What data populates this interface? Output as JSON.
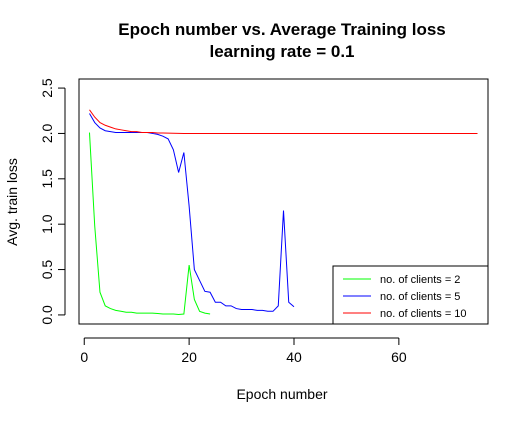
{
  "chart_data": {
    "type": "line",
    "title": "Epoch number vs. Average Training loss",
    "subtitle": "learning rate = 0.1",
    "xlabel": "Epoch number",
    "ylabel": "Avg. train loss",
    "xlim": [
      -1,
      77
    ],
    "ylim": [
      -0.1,
      2.6
    ],
    "x_ticks": [
      0,
      20,
      40,
      60
    ],
    "x_tick_labels": [
      "0",
      "20",
      "40",
      "60"
    ],
    "y_ticks": [
      0.0,
      0.5,
      1.0,
      1.5,
      2.0,
      2.5
    ],
    "y_tick_labels": [
      "0.0",
      "0.5",
      "1.0",
      "1.5",
      "2.0",
      "2.5"
    ],
    "grid": false,
    "legend_position": "bottom-right",
    "series": [
      {
        "name": "no. of clients = 2",
        "color": "#00ff00",
        "x": [
          1,
          2,
          3,
          4,
          5,
          6,
          7,
          8,
          9,
          10,
          11,
          12,
          13,
          14,
          15,
          16,
          17,
          18,
          19,
          20,
          21,
          22,
          23,
          24
        ],
        "y": [
          2.01,
          0.98,
          0.25,
          0.1,
          0.07,
          0.05,
          0.04,
          0.03,
          0.03,
          0.02,
          0.02,
          0.02,
          0.02,
          0.015,
          0.01,
          0.01,
          0.01,
          0.005,
          0.01,
          0.55,
          0.17,
          0.04,
          0.02,
          0.01
        ]
      },
      {
        "name": "no. of clients = 5",
        "color": "#0000ff",
        "x": [
          1,
          2,
          3,
          4,
          5,
          6,
          7,
          8,
          9,
          10,
          11,
          12,
          13,
          14,
          15,
          16,
          17,
          18,
          19,
          20,
          21,
          22,
          23,
          24,
          25,
          26,
          27,
          28,
          29,
          30,
          31,
          32,
          33,
          34,
          35,
          36,
          37,
          38,
          39,
          40
        ],
        "y": [
          2.22,
          2.12,
          2.06,
          2.03,
          2.02,
          2.01,
          2.01,
          2.01,
          2.01,
          2.01,
          2.01,
          2.01,
          2.0,
          1.99,
          1.97,
          1.94,
          1.82,
          1.57,
          1.79,
          1.2,
          0.5,
          0.38,
          0.26,
          0.25,
          0.14,
          0.14,
          0.1,
          0.1,
          0.07,
          0.06,
          0.06,
          0.06,
          0.05,
          0.05,
          0.04,
          0.04,
          0.1,
          1.15,
          0.14,
          0.09
        ]
      },
      {
        "name": "no. of clients = 10",
        "color": "#ff0000",
        "x": [
          1,
          2,
          3,
          4,
          5,
          6,
          7,
          8,
          9,
          10,
          11,
          12,
          13,
          14,
          15,
          16,
          17,
          18,
          19,
          20,
          21,
          22,
          23,
          24,
          25,
          26,
          27,
          28,
          29,
          30,
          31,
          32,
          33,
          34,
          35,
          36,
          37,
          38,
          39,
          40,
          41,
          42,
          43,
          44,
          45,
          46,
          47,
          48,
          49,
          50,
          51,
          52,
          53,
          54,
          55,
          56,
          57,
          58,
          59,
          60,
          61,
          62,
          63,
          64,
          65,
          66,
          67,
          68,
          69,
          70,
          71,
          72,
          73,
          74,
          75
        ],
        "y": [
          2.26,
          2.18,
          2.12,
          2.09,
          2.07,
          2.05,
          2.04,
          2.03,
          2.02,
          2.02,
          2.01,
          2.01,
          2.01,
          2.005,
          2.005,
          2.003,
          2.002,
          2.001,
          2.0,
          2.0,
          2.0,
          2.0,
          2.0,
          2.0,
          2.0,
          2.0,
          2.0,
          2.0,
          2.0,
          2.0,
          2.0,
          2.0,
          2.0,
          2.0,
          2.0,
          2.0,
          2.0,
          2.0,
          2.0,
          2.0,
          2.0,
          2.0,
          2.0,
          2.0,
          2.0,
          2.0,
          2.0,
          2.0,
          2.0,
          2.0,
          2.0,
          2.0,
          2.0,
          2.0,
          2.0,
          2.0,
          2.0,
          2.0,
          2.0,
          2.0,
          2.0,
          2.0,
          2.0,
          2.0,
          2.0,
          2.0,
          2.0,
          2.0,
          2.0,
          2.0,
          2.0,
          2.0,
          2.0,
          2.0,
          2.0
        ]
      }
    ]
  }
}
